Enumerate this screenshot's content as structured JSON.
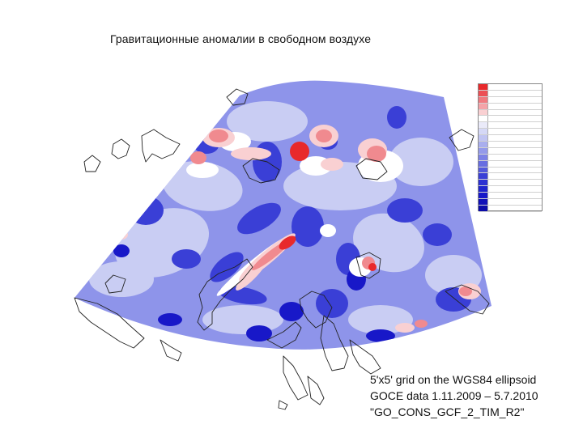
{
  "title": "Гравитационные аномалии в свободном воздухе",
  "caption": {
    "line1": "5'x5' grid on the WGS84 ellipsoid",
    "line2": "GOCE data 1.11.2009 – 5.7.2010",
    "line3": "\"GO_CONS_GCF_2_TIM_R2\""
  },
  "colors": {
    "strong_positive": "#e8292b",
    "positive": "#f08a8f",
    "weak_positive": "#f9d0d2",
    "neutral": "#ffffff",
    "weak_negative": "#c9cdf3",
    "negative": "#7c82e6",
    "strong_negative": "#3a3fd6",
    "very_negative": "#1818c8",
    "coastline": "#222222"
  },
  "legend": {
    "rows": 20,
    "swatch_colors": [
      "#e8292b",
      "#ec4f55",
      "#f07a80",
      "#f4a3a8",
      "#f9d0d2",
      "#ffffff",
      "#eaeaf9",
      "#d5d8f6",
      "#c0c4f2",
      "#a9aeee",
      "#949aea",
      "#7c82e6",
      "#676de1",
      "#5359dc",
      "#3a3fd6",
      "#2c31d2",
      "#1f24cd",
      "#1818c8",
      "#1010b8",
      "#0b0ba8"
    ]
  }
}
